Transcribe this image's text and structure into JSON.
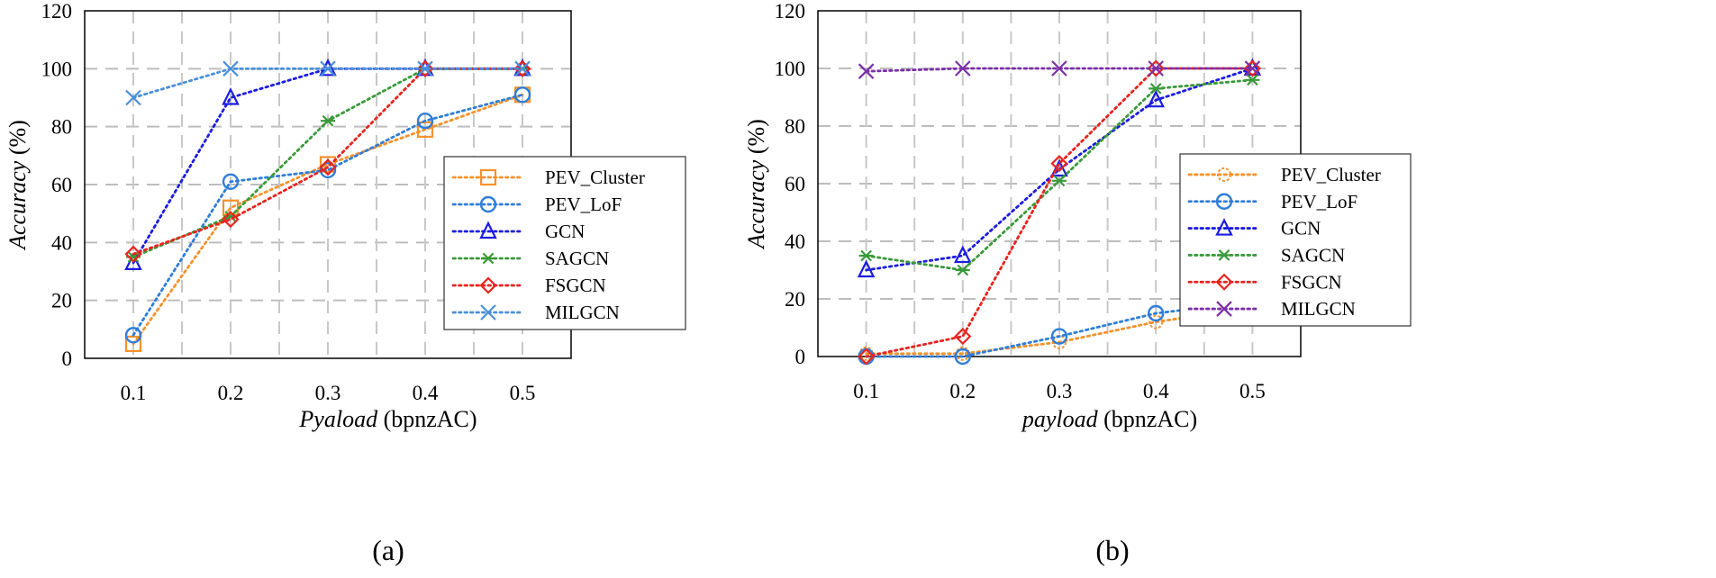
{
  "chart_data": [
    {
      "type": "line",
      "caption": "(a)",
      "xlabel_italic": "Pyaload",
      "xlabel_rest": " (bpnzAC)",
      "ylabel": "Accuracy (%)",
      "ylabel_italic": "Accuracy",
      "ylabel_rest": " (%)",
      "x": [
        0.1,
        0.2,
        0.3,
        0.4,
        0.5
      ],
      "x_tick_labels": [
        "0.1",
        "0.2",
        "0.3",
        "0.4",
        "0.5"
      ],
      "xlim": [
        0.05,
        0.55
      ],
      "ylim": [
        0,
        120
      ],
      "y_ticks": [
        0,
        20,
        40,
        60,
        80,
        100,
        120
      ],
      "grid": true,
      "legend_placement": "center-right",
      "series": [
        {
          "name": "PEV_Cluster",
          "color": "#F5922B",
          "marker": "square",
          "values": [
            5,
            52,
            67,
            79,
            91
          ]
        },
        {
          "name": "PEV_LoF",
          "color": "#2F7ED8",
          "marker": "circle",
          "values": [
            8,
            61,
            65,
            82,
            91
          ]
        },
        {
          "name": "GCN",
          "color": "#1C1CE0",
          "marker": "triangle",
          "values": [
            33,
            90,
            100,
            100,
            100
          ]
        },
        {
          "name": "SAGCN",
          "color": "#3A9A3A",
          "marker": "asterisk",
          "values": [
            35,
            49,
            82,
            100,
            100
          ]
        },
        {
          "name": "FSGCN",
          "color": "#E8231E",
          "marker": "diamond",
          "values": [
            36,
            48,
            66,
            100,
            100
          ]
        },
        {
          "name": "MILGCN",
          "color": "#4A90D9",
          "marker": "x",
          "values": [
            90,
            100,
            100,
            100,
            100
          ]
        }
      ]
    },
    {
      "type": "line",
      "caption": "(b)",
      "xlabel_italic": "payload",
      "xlabel_rest": " (bpnzAC)",
      "ylabel": "Accuracy (%)",
      "ylabel_italic": "Accuracy",
      "ylabel_rest": " (%)",
      "x": [
        0.1,
        0.2,
        0.3,
        0.4,
        0.5
      ],
      "x_tick_labels": [
        "0.1",
        "0.2",
        "0.3",
        "0.4",
        "0.5"
      ],
      "xlim": [
        0.05,
        0.55
      ],
      "ylim": [
        0,
        120
      ],
      "y_ticks": [
        0,
        20,
        40,
        60,
        80,
        100,
        120
      ],
      "grid": true,
      "legend_placement": "center-right",
      "series": [
        {
          "name": "PEV_Cluster",
          "color": "#F5922B",
          "marker": "sun",
          "values": [
            1,
            1,
            5,
            12,
            17
          ]
        },
        {
          "name": "PEV_LoF",
          "color": "#2F7ED8",
          "marker": "circle",
          "values": [
            0,
            0,
            7,
            15,
            19
          ]
        },
        {
          "name": "GCN",
          "color": "#1C1CE0",
          "marker": "triangle",
          "values": [
            30,
            35,
            65,
            89,
            100
          ]
        },
        {
          "name": "SAGCN",
          "color": "#3A9A3A",
          "marker": "asterisk",
          "values": [
            35,
            30,
            61,
            93,
            96
          ]
        },
        {
          "name": "FSGCN",
          "color": "#E8231E",
          "marker": "diamond",
          "values": [
            0,
            7,
            67,
            100,
            100
          ]
        },
        {
          "name": "MILGCN",
          "color": "#7B2FA8",
          "marker": "x-purple",
          "values": [
            99,
            100,
            100,
            100,
            100
          ]
        }
      ]
    }
  ]
}
